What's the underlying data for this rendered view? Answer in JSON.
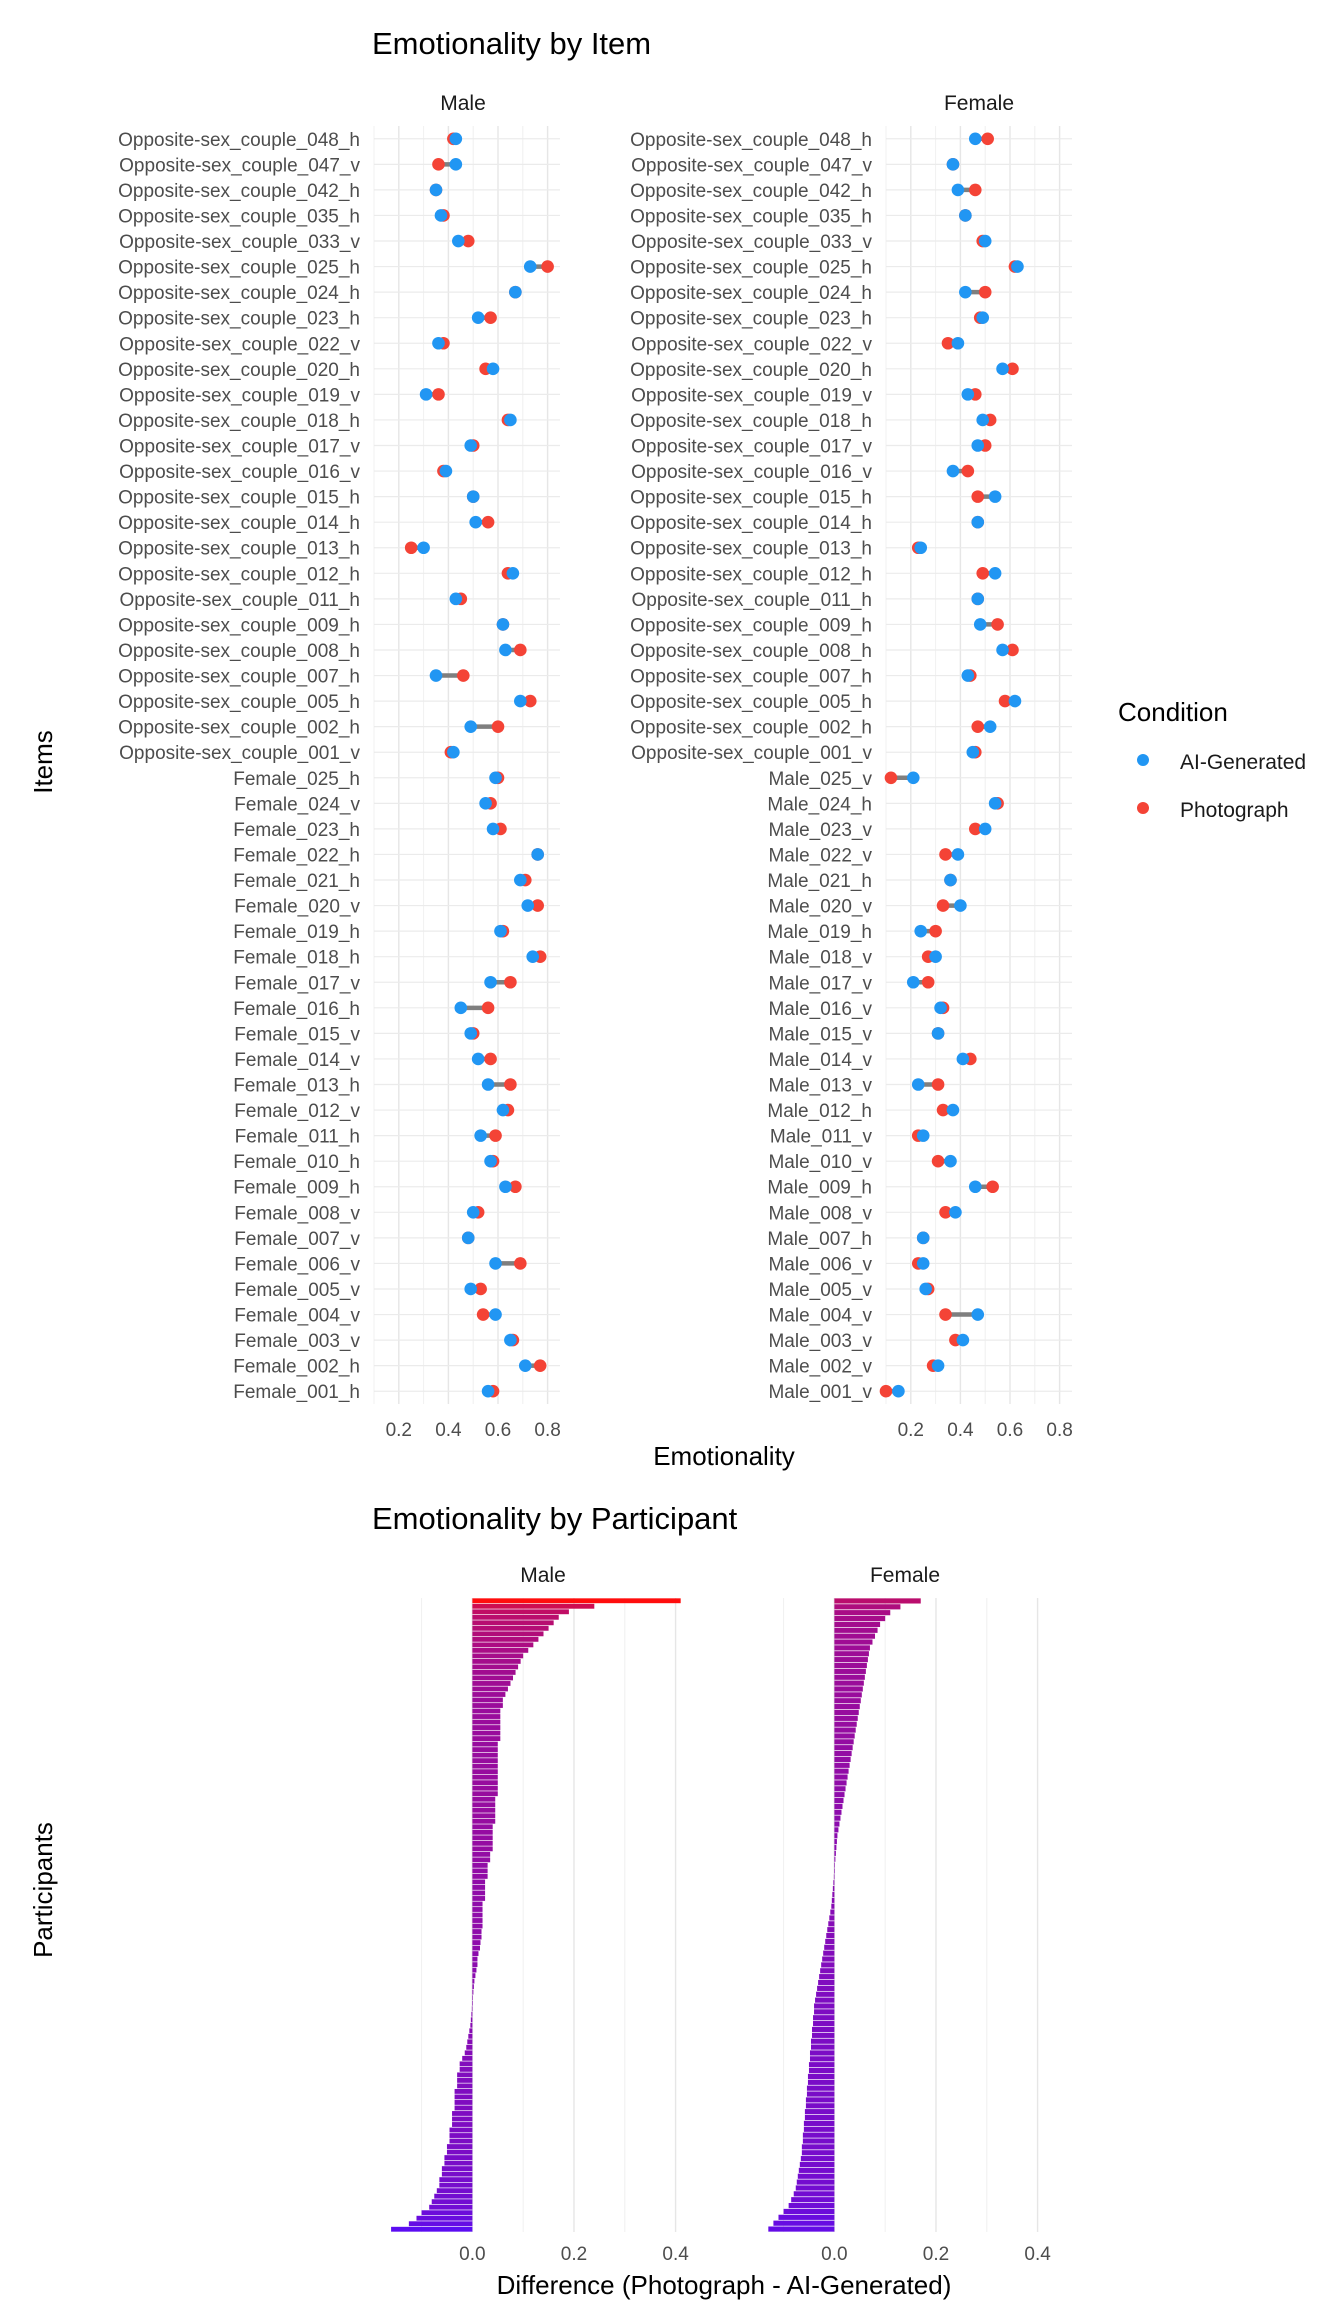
{
  "chart_data": [
    {
      "type": "dumbbell",
      "title": "Emotionality by Item",
      "xlabel": "Emotionality",
      "ylabel": "Items",
      "xlim": [
        0.1,
        0.85
      ],
      "xticks": [
        0.2,
        0.4,
        0.6,
        0.8
      ],
      "xtick_labels": [
        "0.2",
        "0.4",
        "0.6",
        "0.8"
      ],
      "grid": true,
      "legend": {
        "title": "Condition",
        "placement": "right",
        "entries": [
          {
            "name": "AI-Generated",
            "color": "#2196F3"
          },
          {
            "name": "Photograph",
            "color": "#F44336"
          }
        ]
      },
      "series_names": [
        "AI-Generated",
        "Photograph"
      ],
      "panels": [
        {
          "name": "Male",
          "categories": [
            "Opposite-sex_couple_048_h",
            "Opposite-sex_couple_047_v",
            "Opposite-sex_couple_042_h",
            "Opposite-sex_couple_035_h",
            "Opposite-sex_couple_033_v",
            "Opposite-sex_couple_025_h",
            "Opposite-sex_couple_024_h",
            "Opposite-sex_couple_023_h",
            "Opposite-sex_couple_022_v",
            "Opposite-sex_couple_020_h",
            "Opposite-sex_couple_019_v",
            "Opposite-sex_couple_018_h",
            "Opposite-sex_couple_017_v",
            "Opposite-sex_couple_016_v",
            "Opposite-sex_couple_015_h",
            "Opposite-sex_couple_014_h",
            "Opposite-sex_couple_013_h",
            "Opposite-sex_couple_012_h",
            "Opposite-sex_couple_011_h",
            "Opposite-sex_couple_009_h",
            "Opposite-sex_couple_008_h",
            "Opposite-sex_couple_007_h",
            "Opposite-sex_couple_005_h",
            "Opposite-sex_couple_002_h",
            "Opposite-sex_couple_001_v",
            "Female_025_h",
            "Female_024_v",
            "Female_023_h",
            "Female_022_h",
            "Female_021_h",
            "Female_020_v",
            "Female_019_h",
            "Female_018_h",
            "Female_017_v",
            "Female_016_h",
            "Female_015_v",
            "Female_014_v",
            "Female_013_h",
            "Female_012_v",
            "Female_011_h",
            "Female_010_h",
            "Female_009_h",
            "Female_008_v",
            "Female_007_v",
            "Female_006_v",
            "Female_005_v",
            "Female_004_v",
            "Female_003_v",
            "Female_002_h",
            "Female_001_h"
          ],
          "ai_generated": [
            0.43,
            0.43,
            0.35,
            0.37,
            0.44,
            0.73,
            0.67,
            0.52,
            0.36,
            0.58,
            0.31,
            0.65,
            0.49,
            0.39,
            0.5,
            0.51,
            0.3,
            0.66,
            0.43,
            0.62,
            0.63,
            0.35,
            0.69,
            0.49,
            0.42,
            0.59,
            0.55,
            0.58,
            0.76,
            0.69,
            0.72,
            0.61,
            0.74,
            0.57,
            0.45,
            0.49,
            0.52,
            0.56,
            0.62,
            0.53,
            0.57,
            0.63,
            0.5,
            0.48,
            0.59,
            0.49,
            0.59,
            0.65,
            0.71,
            0.56
          ],
          "photograph": [
            0.42,
            0.36,
            0.35,
            0.38,
            0.48,
            0.8,
            0.67,
            0.57,
            0.38,
            0.55,
            0.36,
            0.64,
            0.5,
            0.38,
            0.5,
            0.56,
            0.25,
            0.64,
            0.45,
            0.62,
            0.69,
            0.46,
            0.73,
            0.6,
            0.41,
            0.6,
            0.57,
            0.61,
            0.76,
            0.71,
            0.76,
            0.62,
            0.77,
            0.65,
            0.56,
            0.5,
            0.57,
            0.65,
            0.64,
            0.59,
            0.58,
            0.67,
            0.52,
            0.48,
            0.69,
            0.53,
            0.54,
            0.66,
            0.77,
            0.58
          ]
        },
        {
          "name": "Female",
          "categories": [
            "Opposite-sex_couple_048_h",
            "Opposite-sex_couple_047_v",
            "Opposite-sex_couple_042_h",
            "Opposite-sex_couple_035_h",
            "Opposite-sex_couple_033_v",
            "Opposite-sex_couple_025_h",
            "Opposite-sex_couple_024_h",
            "Opposite-sex_couple_023_h",
            "Opposite-sex_couple_022_v",
            "Opposite-sex_couple_020_h",
            "Opposite-sex_couple_019_v",
            "Opposite-sex_couple_018_h",
            "Opposite-sex_couple_017_v",
            "Opposite-sex_couple_016_v",
            "Opposite-sex_couple_015_h",
            "Opposite-sex_couple_014_h",
            "Opposite-sex_couple_013_h",
            "Opposite-sex_couple_012_h",
            "Opposite-sex_couple_011_h",
            "Opposite-sex_couple_009_h",
            "Opposite-sex_couple_008_h",
            "Opposite-sex_couple_007_h",
            "Opposite-sex_couple_005_h",
            "Opposite-sex_couple_002_h",
            "Opposite-sex_couple_001_v",
            "Male_025_v",
            "Male_024_h",
            "Male_023_v",
            "Male_022_v",
            "Male_021_h",
            "Male_020_v",
            "Male_019_h",
            "Male_018_v",
            "Male_017_v",
            "Male_016_v",
            "Male_015_v",
            "Male_014_v",
            "Male_013_v",
            "Male_012_h",
            "Male_011_v",
            "Male_010_v",
            "Male_009_h",
            "Male_008_v",
            "Male_007_h",
            "Male_006_v",
            "Male_005_v",
            "Male_004_v",
            "Male_003_v",
            "Male_002_v",
            "Male_001_v"
          ],
          "ai_generated": [
            0.46,
            0.37,
            0.39,
            0.42,
            0.5,
            0.63,
            0.42,
            0.49,
            0.39,
            0.57,
            0.43,
            0.49,
            0.47,
            0.37,
            0.54,
            0.47,
            0.24,
            0.54,
            0.47,
            0.48,
            0.57,
            0.43,
            0.62,
            0.52,
            0.45,
            0.21,
            0.54,
            0.5,
            0.39,
            0.36,
            0.4,
            0.24,
            0.3,
            0.21,
            0.32,
            0.31,
            0.41,
            0.23,
            0.37,
            0.25,
            0.36,
            0.46,
            0.38,
            0.25,
            0.25,
            0.26,
            0.47,
            0.41,
            0.31,
            0.15
          ],
          "photograph": [
            0.51,
            0.37,
            0.46,
            0.42,
            0.49,
            0.62,
            0.5,
            0.48,
            0.35,
            0.61,
            0.46,
            0.52,
            0.5,
            0.43,
            0.47,
            0.47,
            0.23,
            0.49,
            0.47,
            0.55,
            0.61,
            0.44,
            0.58,
            0.47,
            0.46,
            0.12,
            0.55,
            0.46,
            0.34,
            0.36,
            0.33,
            0.3,
            0.27,
            0.27,
            0.33,
            0.31,
            0.44,
            0.31,
            0.33,
            0.23,
            0.31,
            0.53,
            0.34,
            0.25,
            0.23,
            0.27,
            0.34,
            0.38,
            0.29,
            0.1
          ]
        }
      ]
    },
    {
      "type": "bar",
      "orientation": "horizontal",
      "title": "Emotionality by Participant",
      "xlabel": "Difference (Photograph - AI-Generated)",
      "ylabel": "Participants",
      "xlim": [
        -0.17,
        0.45
      ],
      "xticks": [
        0.0,
        0.2,
        0.4
      ],
      "xtick_labels": [
        "0.0",
        "0.2",
        "0.4"
      ],
      "grid": true,
      "color_scale": {
        "low": "#5B0CF2",
        "high": "#FF0D0D"
      },
      "panels": [
        {
          "name": "Male",
          "values": [
            0.41,
            0.24,
            0.19,
            0.17,
            0.16,
            0.15,
            0.14,
            0.13,
            0.12,
            0.11,
            0.1,
            0.095,
            0.09,
            0.085,
            0.08,
            0.075,
            0.07,
            0.065,
            0.06,
            0.06,
            0.055,
            0.055,
            0.055,
            0.055,
            0.055,
            0.055,
            0.05,
            0.05,
            0.05,
            0.05,
            0.05,
            0.05,
            0.05,
            0.05,
            0.05,
            0.05,
            0.045,
            0.045,
            0.045,
            0.045,
            0.045,
            0.04,
            0.04,
            0.04,
            0.04,
            0.04,
            0.035,
            0.035,
            0.03,
            0.03,
            0.03,
            0.025,
            0.025,
            0.025,
            0.025,
            0.02,
            0.02,
            0.02,
            0.02,
            0.02,
            0.018,
            0.018,
            0.016,
            0.015,
            0.012,
            0.01,
            0.01,
            0.008,
            0.006,
            0.004,
            0.003,
            0.002,
            0.001,
            0.0,
            -0.001,
            -0.002,
            -0.003,
            -0.004,
            -0.006,
            -0.008,
            -0.01,
            -0.012,
            -0.015,
            -0.02,
            -0.025,
            -0.025,
            -0.03,
            -0.03,
            -0.03,
            -0.035,
            -0.035,
            -0.035,
            -0.035,
            -0.04,
            -0.04,
            -0.04,
            -0.045,
            -0.045,
            -0.045,
            -0.05,
            -0.05,
            -0.055,
            -0.055,
            -0.06,
            -0.06,
            -0.065,
            -0.065,
            -0.07,
            -0.075,
            -0.08,
            -0.085,
            -0.1,
            -0.11,
            -0.125,
            -0.16
          ]
        },
        {
          "name": "Female",
          "values": [
            0.17,
            0.13,
            0.11,
            0.1,
            0.09,
            0.085,
            0.08,
            0.075,
            0.07,
            0.068,
            0.066,
            0.064,
            0.062,
            0.06,
            0.058,
            0.056,
            0.054,
            0.052,
            0.05,
            0.048,
            0.046,
            0.044,
            0.042,
            0.04,
            0.038,
            0.036,
            0.034,
            0.032,
            0.03,
            0.028,
            0.026,
            0.024,
            0.022,
            0.02,
            0.018,
            0.016,
            0.014,
            0.012,
            0.01,
            0.008,
            0.006,
            0.005,
            0.004,
            0.003,
            0.002,
            0.001,
            0.0,
            -0.001,
            -0.002,
            -0.003,
            -0.004,
            -0.005,
            -0.006,
            -0.008,
            -0.01,
            -0.012,
            -0.014,
            -0.016,
            -0.018,
            -0.02,
            -0.022,
            -0.024,
            -0.026,
            -0.028,
            -0.03,
            -0.032,
            -0.034,
            -0.036,
            -0.038,
            -0.04,
            -0.04,
            -0.042,
            -0.042,
            -0.044,
            -0.044,
            -0.046,
            -0.046,
            -0.048,
            -0.048,
            -0.05,
            -0.05,
            -0.052,
            -0.052,
            -0.054,
            -0.054,
            -0.056,
            -0.056,
            -0.058,
            -0.058,
            -0.06,
            -0.06,
            -0.062,
            -0.062,
            -0.064,
            -0.064,
            -0.066,
            -0.068,
            -0.07,
            -0.072,
            -0.074,
            -0.076,
            -0.08,
            -0.085,
            -0.09,
            -0.1,
            -0.11,
            -0.12,
            -0.13
          ]
        }
      ]
    }
  ]
}
